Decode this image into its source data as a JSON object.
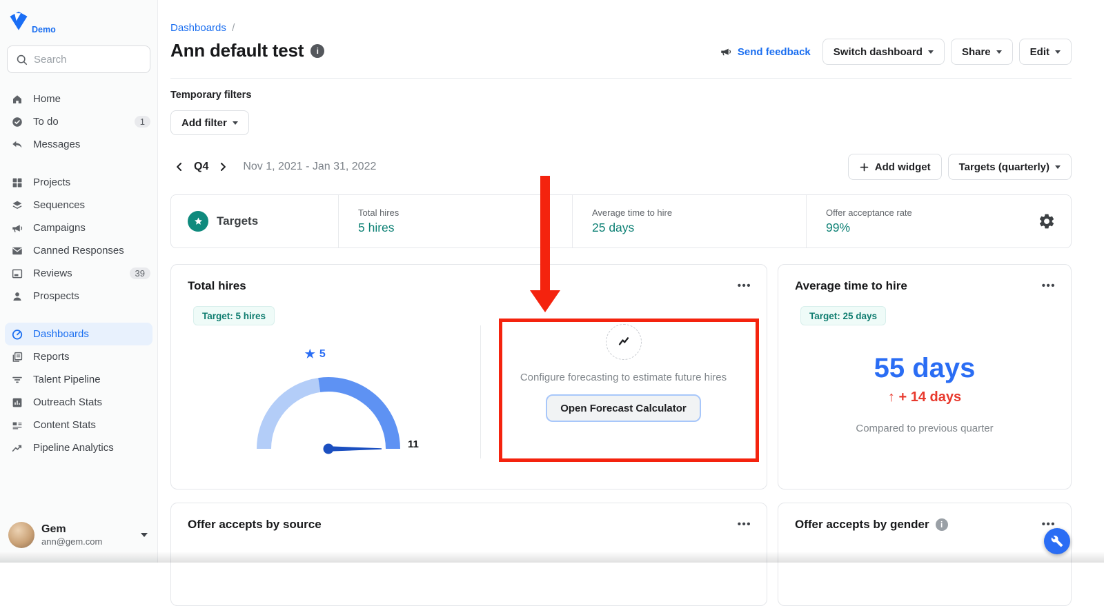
{
  "sidebar": {
    "brand": "Demo",
    "search_placeholder": "Search",
    "items": [
      {
        "label": "Home"
      },
      {
        "label": "To do",
        "badge": "1"
      },
      {
        "label": "Messages"
      },
      {
        "label": "Projects"
      },
      {
        "label": "Sequences"
      },
      {
        "label": "Campaigns"
      },
      {
        "label": "Canned Responses"
      },
      {
        "label": "Reviews",
        "badge": "39"
      },
      {
        "label": "Prospects"
      },
      {
        "label": "Dashboards"
      },
      {
        "label": "Reports"
      },
      {
        "label": "Talent Pipeline"
      },
      {
        "label": "Outreach Stats"
      },
      {
        "label": "Content Stats"
      },
      {
        "label": "Pipeline Analytics"
      }
    ],
    "user": {
      "name": "Gem",
      "email": "ann@gem.com"
    }
  },
  "header": {
    "breadcrumb": "Dashboards",
    "breadcrumb_separator": "/",
    "title": "Ann default test",
    "send_feedback": "Send feedback",
    "switch_dashboard": "Switch dashboard",
    "share": "Share",
    "edit": "Edit"
  },
  "filters": {
    "label": "Temporary filters",
    "add_filter": "Add filter"
  },
  "period": {
    "quarter": "Q4",
    "date_range": "Nov 1, 2021 - Jan 31, 2022",
    "add_widget": "Add widget",
    "targets_mode": "Targets (quarterly)"
  },
  "targets_bar": {
    "title": "Targets",
    "stats": [
      {
        "label": "Total hires",
        "value": "5 hires"
      },
      {
        "label": "Average time to hire",
        "value": "25 days"
      },
      {
        "label": "Offer acceptance rate",
        "value": "99%"
      }
    ]
  },
  "widgets": {
    "total_hires": {
      "title": "Total hires",
      "target_badge": "Target: 5 hires"
    },
    "forecast": {
      "message": "Configure forecasting to estimate future hires",
      "button": "Open Forecast Calculator"
    },
    "avg_time_to_hire": {
      "title": "Average time to hire",
      "target_badge": "Target: 25 days",
      "value": "55 days",
      "delta": "↑ + 14 days",
      "comparison": "Compared to previous quarter"
    },
    "offer_accepts_by_source": {
      "title": "Offer accepts by source"
    },
    "offer_accepts_by_gender": {
      "title": "Offer accepts by gender"
    }
  },
  "chart_data": {
    "type": "gauge",
    "title": "Total hires",
    "min": 0,
    "max": 11,
    "value": 11,
    "target": 5,
    "target_marker_value": "5",
    "max_label": "11",
    "segments": [
      {
        "from": 0,
        "to": 5,
        "color": "#b3cdf8"
      },
      {
        "from": 5,
        "to": 11,
        "color": "#5e92f3"
      }
    ],
    "needle_color": "#1b4fc0"
  },
  "colors": {
    "accent_blue": "#1a6ef0",
    "teal": "#0c8074",
    "annotation_red": "#f4230e",
    "value_blue": "#2a6df4",
    "delta_red": "#e8392d"
  }
}
